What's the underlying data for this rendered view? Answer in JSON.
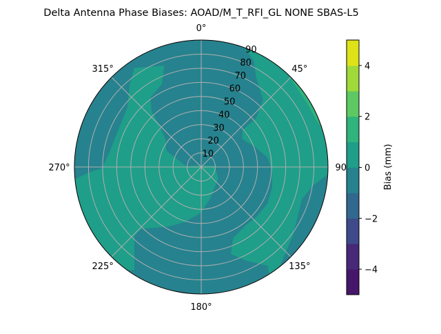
{
  "chart_data": {
    "type": "polar-contour",
    "title": "Delta Antenna Phase Biases: AOAD/M_T_RFI_GL NONE SBAS-L5",
    "angle_ticks": [
      "0°",
      "45°",
      "90°",
      "135°",
      "180°",
      "225°",
      "270°",
      "315°"
    ],
    "angle_tick_values": [
      0,
      45,
      90,
      135,
      180,
      225,
      270,
      315
    ],
    "angle_direction": "clockwise",
    "angle_zero": "top",
    "radial_ticks": [
      "10",
      "20",
      "30",
      "40",
      "50",
      "60",
      "70",
      "80",
      "90"
    ],
    "radial_tick_values": [
      10,
      20,
      30,
      40,
      50,
      60,
      70,
      80,
      90
    ],
    "rlim": [
      0,
      90
    ],
    "grid": true,
    "levels": [
      -5,
      -4,
      -3,
      -2,
      -1,
      0,
      1,
      2,
      3,
      4,
      5
    ],
    "level_colors": [
      "#46166a",
      "#482878",
      "#3e4a89",
      "#31688e",
      "#26828e",
      "#1f9e89",
      "#2fb47c",
      "#5ec962",
      "#9fda3a",
      "#dde318"
    ],
    "regions_visible": [
      {
        "range": [
          -1,
          0
        ],
        "description_level": "background"
      },
      {
        "range": [
          0,
          1
        ],
        "count": 2
      },
      {
        "range": [
          1,
          2
        ],
        "count": 1
      }
    ],
    "colorbar": {
      "label": "Bias (mm)",
      "ticks": [
        "−4",
        "−2",
        "0",
        "2",
        "4"
      ],
      "tick_values": [
        -4,
        -2,
        0,
        2,
        4
      ],
      "range": [
        -5,
        5
      ],
      "placement": "right"
    }
  }
}
